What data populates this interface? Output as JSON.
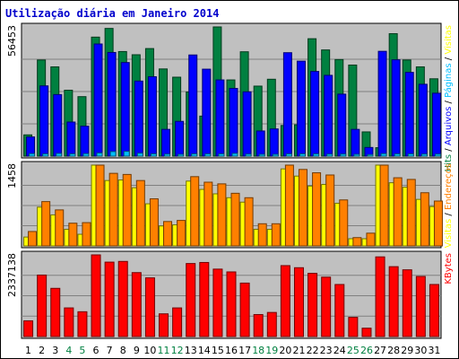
{
  "chart_data": {
    "type": "bar",
    "title": "Utilização diária em Janeiro 2014",
    "categories": [
      "1",
      "2",
      "3",
      "4",
      "5",
      "6",
      "7",
      "8",
      "9",
      "10",
      "11",
      "12",
      "13",
      "14",
      "15",
      "16",
      "17",
      "18",
      "19",
      "20",
      "21",
      "22",
      "23",
      "24",
      "25",
      "26",
      "27",
      "28",
      "29",
      "30",
      "31"
    ],
    "weekend_days": [
      "4",
      "5",
      "11",
      "12",
      "18",
      "19",
      "25",
      "26"
    ],
    "panels": [
      {
        "id": "top",
        "ymax_label": "56453",
        "ymax": 56453,
        "right_labels": [
          "Hits",
          "Arquivos",
          "Páginas",
          "Visitas"
        ],
        "series": [
          {
            "name": "Hits",
            "color": "#008040",
            "values": [
              9300,
              42000,
              39000,
              28800,
              26000,
              52000,
              55800,
              45700,
              44300,
              47000,
              38100,
              34500,
              28000,
              17500,
              56453,
              33300,
              45600,
              30600,
              33600,
              13400,
              13700,
              51300,
              46400,
              42200,
              39800,
              10600,
              3700,
              53500,
              42000,
              39000,
              33800
            ]
          },
          {
            "name": "Arquivos",
            "color": "#0000ff",
            "values": [
              8400,
              30700,
              26900,
              14900,
              13100,
              49000,
              45300,
              40900,
              32800,
              34700,
              11700,
              15200,
              44200,
              38000,
              33300,
              29600,
              28100,
              11000,
              11900,
              45200,
              41500,
              37000,
              35300,
              27100,
              11700,
              3800,
              45800,
              42100,
              36600,
              31400,
              27500
            ]
          },
          {
            "name": "Páginas",
            "color": "#00bfff",
            "values": [
              1100,
              1000,
              1200,
              1000,
              1100,
              1400,
              2000,
              2100,
              1300,
              1000,
              900,
              800,
              1000,
              1000,
              1000,
              1200,
              900,
              800,
              800,
              1000,
              1000,
              1000,
              900,
              900,
              800,
              700,
              1100,
              1000,
              1000,
              900,
              900
            ]
          }
        ]
      },
      {
        "id": "middle",
        "ymax_label": "1458",
        "ymax": 1458,
        "right_labels": [
          "Visitas",
          "Endereços"
        ],
        "series": [
          {
            "name": "Visitas",
            "color": "#ffff00",
            "values": [
              160,
              700,
              560,
              300,
              210,
              1458,
              1180,
              1190,
              1050,
              760,
              360,
              380,
              1170,
              1020,
              940,
              870,
              790,
              300,
              300,
              1390,
              1260,
              1080,
              1110,
              770,
              130,
              130,
              1458,
              1140,
              1060,
              840,
              710
            ]
          },
          {
            "name": "Endereços",
            "color": "#ff8000",
            "values": [
              260,
              800,
              650,
              410,
              420,
              1458,
              1310,
              1290,
              1180,
              850,
              440,
              460,
              1250,
              1150,
              1120,
              950,
              870,
              400,
              400,
              1458,
              1380,
              1320,
              1280,
              830,
              150,
              230,
              1458,
              1230,
              1200,
              960,
              810
            ]
          }
        ]
      },
      {
        "id": "bottom",
        "ymax_label": "2337138",
        "ymax": 2337138,
        "right_labels": [
          "KBytes"
        ],
        "series": [
          {
            "name": "KBytes",
            "color": "#ff0000",
            "values": [
              450000,
              1760000,
              1380000,
              820000,
              710000,
              2337138,
              2130000,
              2150000,
              1830000,
              1680000,
              650000,
              820000,
              2090000,
              2120000,
              1930000,
              1850000,
              1530000,
              630000,
              690000,
              2030000,
              1970000,
              1810000,
              1700000,
              1490000,
              550000,
              240000,
              2280000,
              2000000,
              1910000,
              1720000,
              1490000
            ]
          }
        ]
      }
    ],
    "colors": {
      "background": "#ffffff",
      "plot_background": "#c0c0c0",
      "title": "#0000cc",
      "axis_text": "#000000",
      "weekend_text": "#008040",
      "border": "#000000",
      "hits": "#008040",
      "arquivos": "#0000ff",
      "paginas": "#00bfff",
      "visitas": "#ffff00",
      "enderecos": "#ff8000",
      "kbytes": "#ff0000"
    }
  }
}
